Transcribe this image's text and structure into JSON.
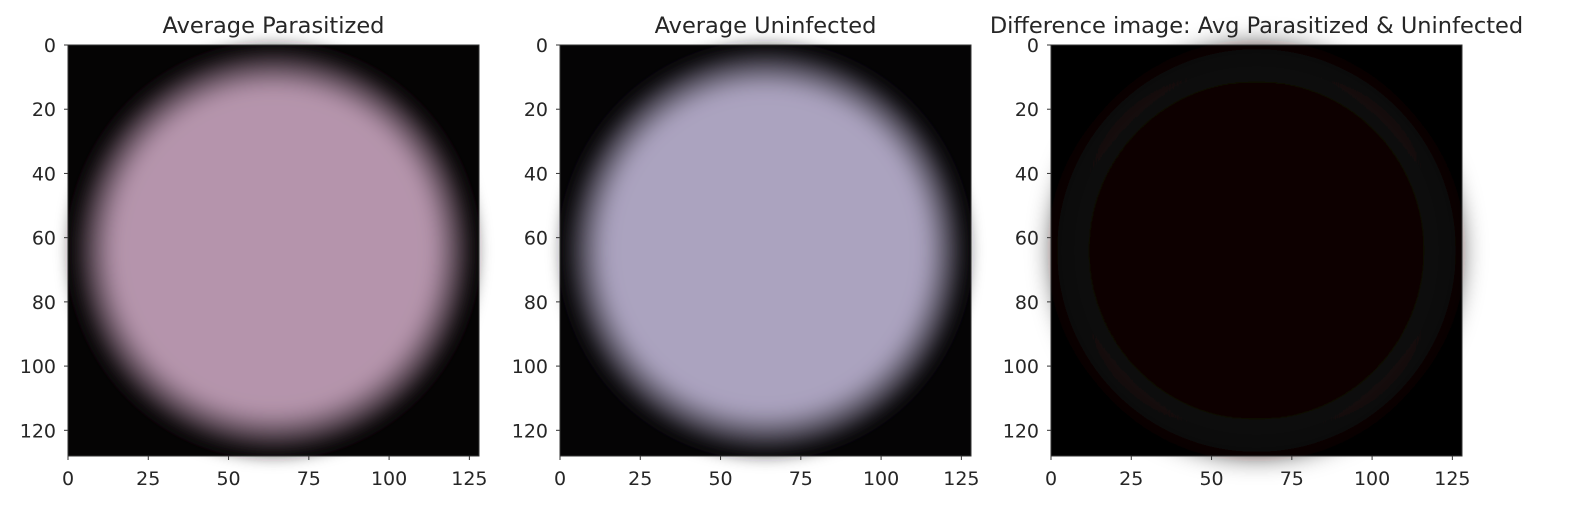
{
  "chart_data": [
    {
      "type": "heatmap",
      "title": "Average Parasitized",
      "xlabel": "",
      "ylabel": "",
      "xlim": [
        0,
        128
      ],
      "ylim": [
        128,
        0
      ],
      "xticks": [
        "0",
        "25",
        "50",
        "75",
        "100",
        "125"
      ],
      "yticks": [
        "0",
        "20",
        "40",
        "60",
        "80",
        "100",
        "120"
      ],
      "grid": false,
      "image": {
        "content": "round blurred cell average",
        "fill_color": "#b594ac",
        "edge_color": "#0a0708",
        "background_color": "#050404"
      }
    },
    {
      "type": "heatmap",
      "title": "Average Uninfected",
      "xlabel": "",
      "ylabel": "",
      "xlim": [
        0,
        128
      ],
      "ylim": [
        128,
        0
      ],
      "xticks": [
        "0",
        "25",
        "50",
        "75",
        "100",
        "125"
      ],
      "yticks": [
        "0",
        "20",
        "40",
        "60",
        "80",
        "100",
        "120"
      ],
      "grid": false,
      "image": {
        "content": "round blurred cell average",
        "fill_color": "#aba3bf",
        "edge_color": "#0a090b",
        "background_color": "#050405"
      }
    },
    {
      "type": "heatmap",
      "title": "Difference image: Avg Parasitized & Uninfected",
      "xlabel": "",
      "ylabel": "",
      "xlim": [
        0,
        128
      ],
      "ylim": [
        128,
        0
      ],
      "xticks": [
        "0",
        "25",
        "50",
        "75",
        "100",
        "125"
      ],
      "yticks": [
        "0",
        "20",
        "40",
        "60",
        "80",
        "100",
        "120"
      ],
      "grid": false,
      "image": {
        "content": "near-black difference image",
        "fill_color": "#0b0505",
        "edge_color": "#1a0d0c",
        "background_color": "#000000"
      }
    }
  ]
}
